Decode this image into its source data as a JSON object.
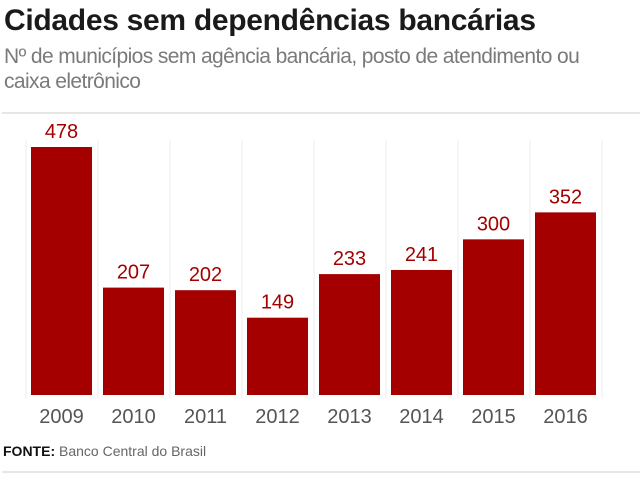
{
  "title": "Cidades sem dependências bancárias",
  "subtitle": "Nº de municípios sem agência bancária, posto de atendimento ou caixa eletrônico",
  "source": {
    "label": "FONTE:",
    "text": "Banco Central do Brasil"
  },
  "colors": {
    "bar": "#a50000",
    "value_label": "#a50000",
    "tick_label": "#555555",
    "grid": "#eeeeee"
  },
  "chart_data": {
    "type": "bar",
    "title": "Cidades sem dependências bancárias",
    "subtitle": "Nº de municípios sem agência bancária, posto de atendimento ou caixa eletrônico",
    "categories": [
      "2009",
      "2010",
      "2011",
      "2012",
      "2013",
      "2014",
      "2015",
      "2016"
    ],
    "values": [
      478,
      207,
      202,
      149,
      233,
      241,
      300,
      352
    ],
    "xlabel": "",
    "ylabel": "",
    "ylim": [
      0,
      478
    ],
    "grid": "vertical separators",
    "data_labels": true
  }
}
